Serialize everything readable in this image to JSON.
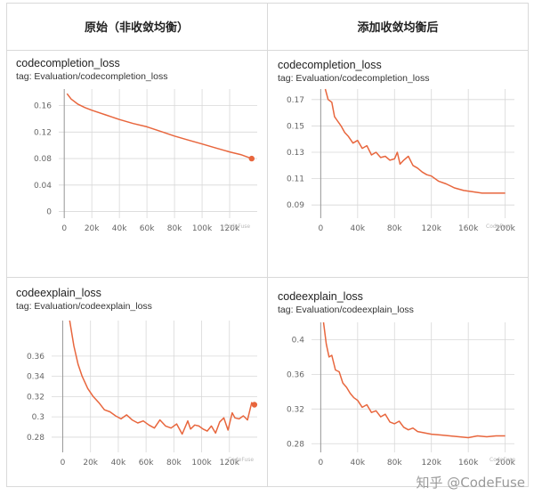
{
  "headers": {
    "left": "原始（非收敛均衡）",
    "right": "添加收敛均衡后"
  },
  "watermark_small": "CodeFuse",
  "watermark_bottom": "知乎 @CodeFuse",
  "colors": {
    "line": "#e8663d",
    "grid": "#d8d8d8",
    "axis": "#9a9a9a"
  },
  "chart_data": [
    {
      "type": "line",
      "title": "codecompletion_loss",
      "tag": "tag: Evaluation/codecompletion_loss",
      "xlim": [
        -4000,
        140000
      ],
      "ylim": [
        -0.01,
        0.185
      ],
      "xticks": [
        0,
        20000,
        40000,
        60000,
        80000,
        100000,
        120000
      ],
      "xtick_labels": [
        "0",
        "20k",
        "40k",
        "60k",
        "80k",
        "100k",
        "120k"
      ],
      "yticks": [
        0,
        0.04,
        0.08,
        0.12,
        0.16
      ],
      "ytick_labels": [
        "0",
        "0.04",
        "0.08",
        "0.12",
        "0.16"
      ],
      "endpoint": true,
      "series": [
        {
          "x": [
            2000,
            5000,
            10000,
            15000,
            20000,
            30000,
            40000,
            50000,
            60000,
            70000,
            80000,
            90000,
            100000,
            110000,
            120000,
            128000,
            136000
          ],
          "y": [
            0.178,
            0.17,
            0.162,
            0.157,
            0.153,
            0.146,
            0.139,
            0.133,
            0.128,
            0.121,
            0.114,
            0.108,
            0.102,
            0.096,
            0.09,
            0.086,
            0.08
          ]
        }
      ]
    },
    {
      "type": "line",
      "title": "codecompletion_loss",
      "tag": "tag: Evaluation/codecompletion_loss",
      "xlim": [
        -10000,
        210000
      ],
      "ylim": [
        0.08,
        0.178
      ],
      "xticks": [
        0,
        40000,
        80000,
        120000,
        160000,
        200000
      ],
      "xtick_labels": [
        "0",
        "40k",
        "80k",
        "120k",
        "160k",
        "200k"
      ],
      "yticks": [
        0.09,
        0.11,
        0.13,
        0.15,
        0.17
      ],
      "ytick_labels": [
        "0.09",
        "0.11",
        "0.13",
        "0.15",
        "0.17"
      ],
      "endpoint": false,
      "series": [
        {
          "x": [
            5000,
            8000,
            12000,
            15000,
            18000,
            22000,
            26000,
            30000,
            35000,
            40000,
            45000,
            50000,
            55000,
            60000,
            65000,
            70000,
            75000,
            80000,
            83000,
            86000,
            90000,
            95000,
            100000,
            105000,
            110000,
            115000,
            120000,
            128000,
            136000,
            145000,
            155000,
            165000,
            175000,
            190000,
            200000
          ],
          "y": [
            0.178,
            0.17,
            0.168,
            0.157,
            0.154,
            0.15,
            0.145,
            0.142,
            0.137,
            0.139,
            0.133,
            0.135,
            0.128,
            0.13,
            0.126,
            0.127,
            0.124,
            0.125,
            0.13,
            0.121,
            0.124,
            0.127,
            0.12,
            0.118,
            0.115,
            0.113,
            0.112,
            0.108,
            0.106,
            0.103,
            0.101,
            0.1,
            0.099,
            0.099,
            0.099
          ]
        }
      ]
    },
    {
      "type": "line",
      "title": "codeexplain_loss",
      "tag": "tag: Evaluation/codeexplain_loss",
      "xlim": [
        -8000,
        140000
      ],
      "ylim": [
        0.265,
        0.395
      ],
      "xticks": [
        0,
        20000,
        40000,
        60000,
        80000,
        100000,
        120000
      ],
      "xtick_labels": [
        "0",
        "20k",
        "40k",
        "60k",
        "80k",
        "100k",
        "120k"
      ],
      "yticks": [
        0.28,
        0.3,
        0.32,
        0.34,
        0.36
      ],
      "ytick_labels": [
        "0.28",
        "0.3",
        "0.32",
        "0.34",
        "0.36"
      ],
      "endpoint": true,
      "series": [
        {
          "x": [
            5000,
            8000,
            11000,
            14000,
            18000,
            22000,
            26000,
            30000,
            34000,
            38000,
            42000,
            46000,
            50000,
            54000,
            58000,
            62000,
            66000,
            70000,
            74000,
            78000,
            82000,
            86000,
            90000,
            92000,
            95000,
            98000,
            101000,
            104000,
            107000,
            110000,
            113000,
            116000,
            119000,
            122000,
            124000,
            127000,
            130000,
            133000,
            136000,
            138000
          ],
          "y": [
            0.395,
            0.37,
            0.352,
            0.34,
            0.328,
            0.32,
            0.314,
            0.307,
            0.305,
            0.301,
            0.298,
            0.302,
            0.297,
            0.294,
            0.296,
            0.292,
            0.289,
            0.297,
            0.291,
            0.289,
            0.293,
            0.283,
            0.296,
            0.288,
            0.292,
            0.291,
            0.288,
            0.286,
            0.291,
            0.284,
            0.295,
            0.299,
            0.287,
            0.304,
            0.299,
            0.298,
            0.301,
            0.297,
            0.314,
            0.312
          ]
        }
      ]
    },
    {
      "type": "line",
      "title": "codeexplain_loss",
      "tag": "tag: Evaluation/codeexplain_loss",
      "xlim": [
        -10000,
        210000
      ],
      "ylim": [
        0.27,
        0.42
      ],
      "xticks": [
        0,
        40000,
        80000,
        120000,
        160000,
        200000
      ],
      "xtick_labels": [
        "0",
        "40k",
        "80k",
        "120k",
        "160k",
        "200k"
      ],
      "yticks": [
        0.28,
        0.32,
        0.36,
        0.4
      ],
      "ytick_labels": [
        "0.28",
        "0.32",
        "0.36",
        "0.4"
      ],
      "endpoint": false,
      "series": [
        {
          "x": [
            3000,
            6000,
            9000,
            12000,
            16000,
            20000,
            24000,
            28000,
            32000,
            36000,
            40000,
            45000,
            50000,
            55000,
            60000,
            65000,
            70000,
            75000,
            80000,
            85000,
            90000,
            95000,
            100000,
            105000,
            110000,
            115000,
            120000,
            130000,
            140000,
            150000,
            160000,
            170000,
            180000,
            190000,
            200000
          ],
          "y": [
            0.42,
            0.395,
            0.38,
            0.382,
            0.365,
            0.363,
            0.35,
            0.345,
            0.338,
            0.333,
            0.33,
            0.322,
            0.325,
            0.316,
            0.318,
            0.311,
            0.314,
            0.305,
            0.303,
            0.306,
            0.299,
            0.296,
            0.298,
            0.294,
            0.293,
            0.292,
            0.291,
            0.29,
            0.289,
            0.288,
            0.287,
            0.289,
            0.288,
            0.289,
            0.289
          ]
        }
      ]
    }
  ]
}
